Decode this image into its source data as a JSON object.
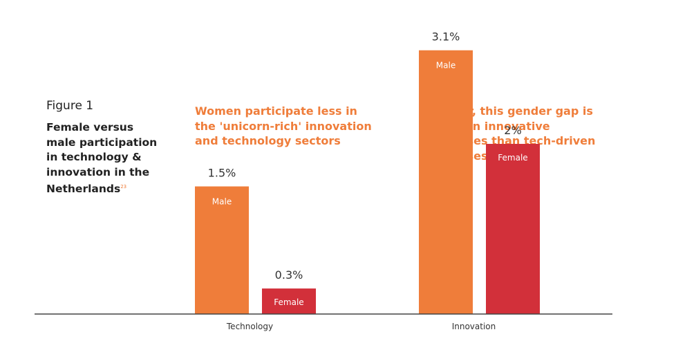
{
  "figure": {
    "label": "Figure 1",
    "title": "Female versus male participation in technology & innovation in the Netherlands",
    "footnote": "23"
  },
  "headlines": [
    "Women participate less in the 'unicorn-rich' innovation and technology sectors",
    "However, this gender gap is smaller in innovative businesses than tech-driven businesses"
  ],
  "colors": {
    "male": "#ef7d3a",
    "female": "#d2303a",
    "headline": "#ef7d3a",
    "axis": "#444444"
  },
  "chart_data": {
    "type": "bar",
    "categories": [
      "Technology",
      "Innovation"
    ],
    "series": [
      {
        "name": "Male",
        "values": [
          1.5,
          3.1
        ],
        "value_labels": [
          "1.5%",
          "3.1%"
        ]
      },
      {
        "name": "Female",
        "values": [
          0.3,
          2.0
        ],
        "value_labels": [
          "0.3%",
          "2%"
        ]
      }
    ],
    "unit": "%",
    "title": "",
    "xlabel": "",
    "ylabel": "",
    "grid": false,
    "legend": "none"
  }
}
